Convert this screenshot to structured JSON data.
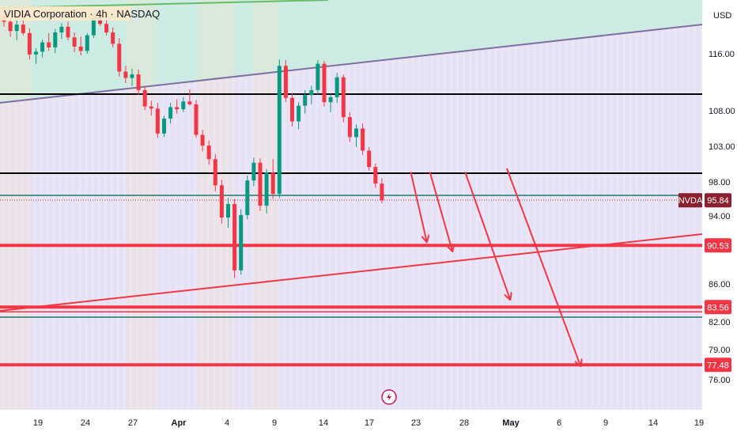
{
  "chart_data": {
    "type": "candlestick",
    "symbol": "NVDA",
    "legend": "VIDIA Corporation · 4h · NASDAQ",
    "currency": "USD",
    "y_range": [
      73,
      124
    ],
    "price_ticks": [
      "116.00",
      "108.00",
      "103.00",
      "98.00",
      "94.00",
      "86.00",
      "82.00",
      "79.00",
      "76.00"
    ],
    "time_ticks": [
      {
        "label": "19",
        "bold": false
      },
      {
        "label": "24",
        "bold": false
      },
      {
        "label": "27",
        "bold": false
      },
      {
        "label": "Apr",
        "bold": true
      },
      {
        "label": "4",
        "bold": false
      },
      {
        "label": "9",
        "bold": false
      },
      {
        "label": "14",
        "bold": false
      },
      {
        "label": "17",
        "bold": false
      },
      {
        "label": "23",
        "bold": false
      },
      {
        "label": "28",
        "bold": false
      },
      {
        "label": "May",
        "bold": true
      },
      {
        "label": "6",
        "bold": false
      },
      {
        "label": "9",
        "bold": false
      },
      {
        "label": "14",
        "bold": false
      },
      {
        "label": "19",
        "bold": false
      }
    ],
    "last_price": {
      "label": "NVDA",
      "value": "95.84",
      "price": 95.84
    },
    "levels": [
      {
        "value": "90.53",
        "price": 90.53
      },
      {
        "value": "83.56",
        "price": 83.56
      },
      {
        "value": "77.48",
        "price": 77.48
      }
    ],
    "candles_ohlc": [
      [
        121.2,
        122.6,
        119.8,
        120.5
      ],
      [
        120.5,
        121.3,
        118.4,
        119.2
      ],
      [
        119.2,
        120.8,
        117.9,
        120.1
      ],
      [
        120.1,
        121.0,
        118.6,
        118.9
      ],
      [
        118.9,
        119.6,
        115.2,
        115.9
      ],
      [
        115.9,
        116.8,
        114.6,
        116.3
      ],
      [
        116.3,
        118.0,
        115.5,
        117.6
      ],
      [
        117.6,
        118.9,
        116.4,
        116.9
      ],
      [
        116.9,
        119.5,
        116.1,
        119.0
      ],
      [
        119.0,
        120.3,
        118.1,
        119.8
      ],
      [
        119.8,
        120.5,
        117.9,
        118.3
      ],
      [
        118.3,
        119.0,
        116.2,
        117.0
      ],
      [
        117.0,
        118.4,
        115.8,
        116.4
      ],
      [
        116.4,
        118.9,
        116.0,
        118.6
      ],
      [
        118.6,
        121.5,
        118.2,
        121.0
      ],
      [
        121.0,
        122.1,
        119.9,
        120.2
      ],
      [
        120.2,
        121.2,
        118.6,
        119.0
      ],
      [
        119.0,
        119.7,
        116.9,
        117.4
      ],
      [
        117.4,
        118.2,
        112.8,
        113.5
      ],
      [
        113.5,
        114.3,
        111.9,
        112.6
      ],
      [
        112.6,
        113.9,
        111.5,
        113.1
      ],
      [
        113.1,
        113.8,
        110.2,
        110.9
      ],
      [
        110.9,
        111.4,
        108.1,
        108.6
      ],
      [
        108.6,
        109.4,
        107.3,
        108.3
      ],
      [
        108.3,
        109.1,
        104.2,
        104.8
      ],
      [
        104.8,
        107.3,
        104.3,
        106.9
      ],
      [
        106.9,
        109.1,
        106.2,
        108.5
      ],
      [
        108.5,
        109.6,
        107.6,
        108.2
      ],
      [
        108.2,
        109.9,
        107.8,
        109.3
      ],
      [
        109.3,
        111.0,
        108.7,
        108.9
      ],
      [
        108.9,
        109.5,
        104.2,
        104.6
      ],
      [
        104.6,
        105.3,
        102.3,
        103.1
      ],
      [
        103.1,
        103.8,
        100.4,
        101.2
      ],
      [
        101.2,
        101.9,
        96.9,
        97.6
      ],
      [
        97.6,
        98.3,
        93.1,
        93.8
      ],
      [
        93.8,
        96.1,
        92.6,
        95.4
      ],
      [
        95.4,
        96.0,
        86.7,
        87.6
      ],
      [
        87.6,
        94.8,
        87.1,
        94.1
      ],
      [
        94.1,
        98.9,
        93.6,
        98.2
      ],
      [
        98.2,
        101.4,
        97.5,
        100.7
      ],
      [
        100.7,
        101.3,
        94.6,
        95.2
      ],
      [
        95.2,
        99.8,
        94.3,
        99.3
      ],
      [
        99.3,
        101.2,
        96.0,
        96.6
      ],
      [
        96.6,
        115.2,
        96.1,
        114.3
      ],
      [
        114.3,
        115.1,
        109.2,
        109.8
      ],
      [
        109.8,
        110.5,
        105.8,
        106.5
      ],
      [
        106.5,
        109.2,
        105.4,
        108.7
      ],
      [
        108.7,
        110.9,
        107.6,
        110.2
      ],
      [
        110.2,
        111.5,
        108.9,
        110.9
      ],
      [
        110.9,
        115.1,
        110.3,
        114.6
      ],
      [
        114.6,
        115.0,
        108.6,
        109.2
      ],
      [
        109.2,
        110.4,
        107.8,
        109.9
      ],
      [
        109.9,
        113.3,
        109.1,
        112.7
      ],
      [
        112.7,
        113.1,
        106.4,
        107.1
      ],
      [
        107.1,
        107.8,
        103.6,
        104.3
      ],
      [
        104.3,
        106.1,
        102.9,
        105.5
      ],
      [
        105.5,
        106.2,
        101.8,
        102.4
      ],
      [
        102.4,
        102.9,
        99.6,
        100.1
      ],
      [
        100.1,
        100.6,
        97.3,
        97.8
      ],
      [
        97.8,
        98.5,
        95.5,
        95.84
      ]
    ],
    "projected_moves": [
      {
        "from": {
          "bar": 63.5,
          "price": 99.4
        },
        "to": {
          "bar": 66.0,
          "price": 91.0
        }
      },
      {
        "from": {
          "bar": 66.5,
          "price": 99.4
        },
        "to": {
          "bar": 70.0,
          "price": 89.9
        }
      },
      {
        "from": {
          "bar": 72.0,
          "price": 99.4
        },
        "to": {
          "bar": 79.0,
          "price": 84.4
        }
      },
      {
        "from": {
          "bar": 78.5,
          "price": 99.9
        },
        "to": {
          "bar": 90.0,
          "price": 77.4
        }
      }
    ],
    "grid": false
  }
}
